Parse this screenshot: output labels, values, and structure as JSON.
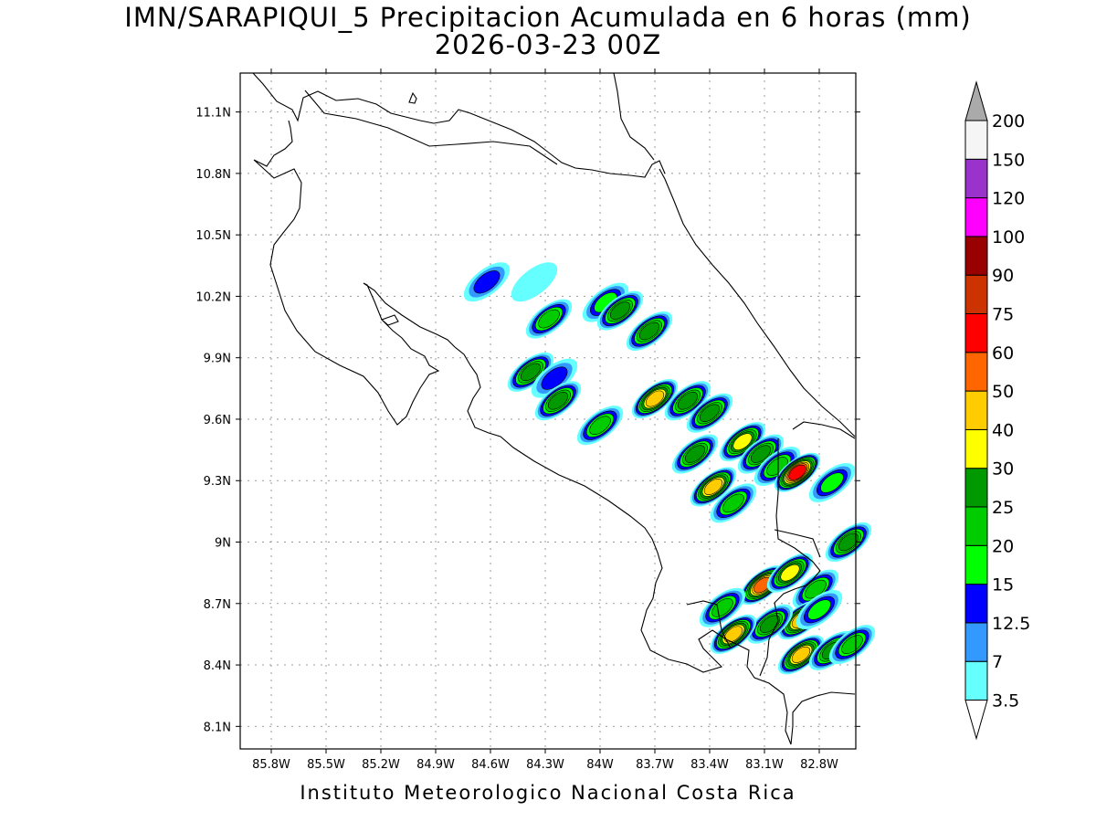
{
  "title": {
    "line1": "IMN/SARAPIQUI_5 Precipitacion Acumulada en 6 horas (mm)",
    "line2": "2026-03-23 00Z"
  },
  "footer": "Instituto Meteorologico Nacional Costa Rica",
  "map": {
    "lon_ticks": [
      "85.8W",
      "85.5W",
      "85.2W",
      "84.9W",
      "84.6W",
      "84.3W",
      "84W",
      "83.7W",
      "83.4W",
      "83.1W",
      "82.8W"
    ],
    "lat_ticks": [
      "11.1N",
      "10.8N",
      "10.5N",
      "10.2N",
      "9.9N",
      "9.6N",
      "9.3N",
      "9N",
      "8.7N",
      "8.4N",
      "8.1N"
    ],
    "lon_values": [
      -85.8,
      -85.5,
      -85.2,
      -84.9,
      -84.6,
      -84.3,
      -84.0,
      -83.7,
      -83.4,
      -83.1,
      -82.8
    ],
    "lat_values": [
      11.1,
      10.8,
      10.5,
      10.2,
      9.9,
      9.6,
      9.3,
      9.0,
      8.7,
      8.4,
      8.1
    ],
    "lon_range": [
      -85.97,
      -82.6
    ],
    "lat_range": [
      7.99,
      11.29
    ],
    "grid": true
  },
  "colorbar": {
    "levels": [
      "3.5",
      "7",
      "12.5",
      "15",
      "20",
      "25",
      "30",
      "40",
      "50",
      "60",
      "75",
      "90",
      "100",
      "120",
      "150",
      "200"
    ],
    "colors": [
      "#66ffff",
      "#3399ff",
      "#0000ff",
      "#00ff00",
      "#00cc00",
      "#009900",
      "#ffff00",
      "#ffcc00",
      "#ff6600",
      "#ff0000",
      "#cc3300",
      "#990000",
      "#ff00ff",
      "#9933cc",
      "#f5f5f5",
      "#aaaaaa"
    ],
    "lower_end_color": "#ffffff"
  },
  "precip_cells": [
    {
      "lon": -84.62,
      "lat": 10.27,
      "peak": "12.5"
    },
    {
      "lon": -84.36,
      "lat": 10.27,
      "peak": "3.5"
    },
    {
      "lon": -84.28,
      "lat": 10.09,
      "peak": "20"
    },
    {
      "lon": -83.97,
      "lat": 10.17,
      "peak": "15"
    },
    {
      "lon": -83.89,
      "lat": 10.13,
      "peak": "25"
    },
    {
      "lon": -83.73,
      "lat": 10.03,
      "peak": "25"
    },
    {
      "lon": -84.38,
      "lat": 9.83,
      "peak": "25"
    },
    {
      "lon": -84.25,
      "lat": 9.8,
      "peak": "12.5"
    },
    {
      "lon": -84.23,
      "lat": 9.69,
      "peak": "25"
    },
    {
      "lon": -84.0,
      "lat": 9.57,
      "peak": "20"
    },
    {
      "lon": -83.7,
      "lat": 9.7,
      "peak": "40"
    },
    {
      "lon": -83.52,
      "lat": 9.69,
      "peak": "25"
    },
    {
      "lon": -83.4,
      "lat": 9.63,
      "peak": "25"
    },
    {
      "lon": -83.48,
      "lat": 9.43,
      "peak": "25"
    },
    {
      "lon": -83.22,
      "lat": 9.49,
      "peak": "30"
    },
    {
      "lon": -83.12,
      "lat": 9.43,
      "peak": "25"
    },
    {
      "lon": -83.38,
      "lat": 9.27,
      "peak": "40"
    },
    {
      "lon": -83.27,
      "lat": 9.19,
      "peak": "20"
    },
    {
      "lon": -83.03,
      "lat": 9.37,
      "peak": "20"
    },
    {
      "lon": -82.92,
      "lat": 9.34,
      "peak": "60"
    },
    {
      "lon": -82.73,
      "lat": 9.29,
      "peak": "15"
    },
    {
      "lon": -82.64,
      "lat": 9.0,
      "peak": "25"
    },
    {
      "lon": -83.11,
      "lat": 8.79,
      "peak": "50"
    },
    {
      "lon": -82.96,
      "lat": 8.85,
      "peak": "30"
    },
    {
      "lon": -82.82,
      "lat": 8.77,
      "peak": "20"
    },
    {
      "lon": -82.9,
      "lat": 8.62,
      "peak": "40"
    },
    {
      "lon": -83.07,
      "lat": 8.6,
      "peak": "25"
    },
    {
      "lon": -83.27,
      "lat": 8.55,
      "peak": "40"
    },
    {
      "lon": -82.9,
      "lat": 8.45,
      "peak": "40"
    },
    {
      "lon": -82.73,
      "lat": 8.47,
      "peak": "25"
    },
    {
      "lon": -82.62,
      "lat": 8.5,
      "peak": "20"
    },
    {
      "lon": -83.33,
      "lat": 8.68,
      "peak": "20"
    },
    {
      "lon": -82.8,
      "lat": 8.67,
      "peak": "15"
    }
  ]
}
